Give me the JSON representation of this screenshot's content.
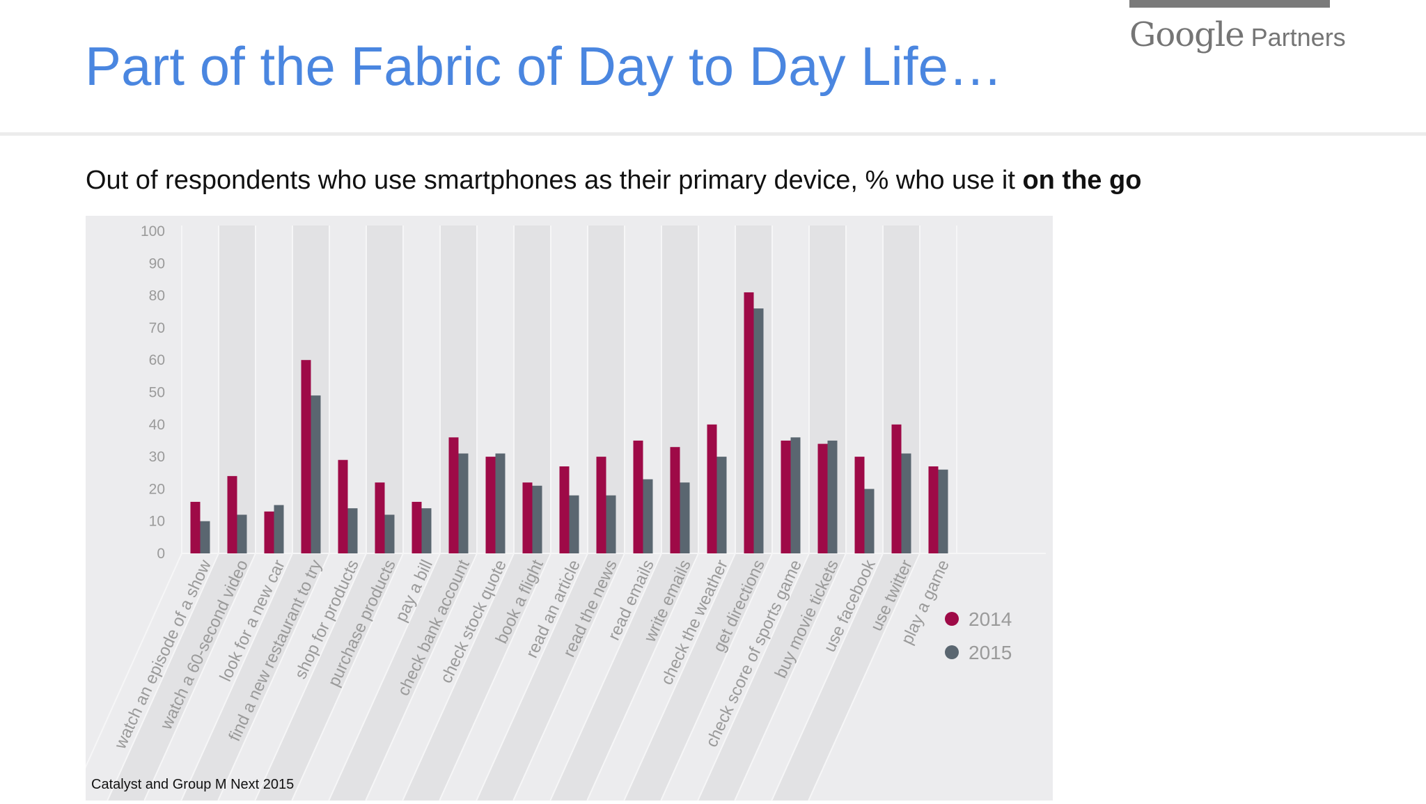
{
  "slide": {
    "title": "Part of the Fabric of Day to Day Life…",
    "subtitle_prefix": "Out of respondents who use smartphones as their primary device, % who use it ",
    "subtitle_emphasis": "on the go",
    "source": "Catalyst and Group M Next 2015",
    "logo_word": "Google",
    "logo_suffix": "Partners"
  },
  "colors": {
    "title": "#4a86e0",
    "series_2014": "#9e0a47",
    "series_2015": "#5a6670",
    "chart_bg": "#ececee",
    "band_dark": "#e2e2e4",
    "axis_text": "#9a9a9a"
  },
  "chart_data": {
    "type": "bar",
    "title": "",
    "xlabel": "",
    "ylabel": "",
    "ylim": [
      0,
      100
    ],
    "yticks": [
      0,
      10,
      20,
      30,
      40,
      50,
      60,
      70,
      80,
      90,
      100
    ],
    "grid": false,
    "legend_position": "right",
    "categories": [
      "watch an episode of a show",
      "watch a 60-second video",
      "look for a new car",
      "find a new restaurant to try",
      "shop for products",
      "purchase products",
      "pay a bill",
      "check bank account",
      "check stock quote",
      "book a flight",
      "read an article",
      "read the news",
      "read emails",
      "write emails",
      "check the weather",
      "get directions",
      "check score of sports game",
      "buy movie tickets",
      "use facebook",
      "use twitter",
      "play a game"
    ],
    "series": [
      {
        "name": "2014",
        "values": [
          16,
          24,
          13,
          60,
          29,
          22,
          16,
          36,
          30,
          22,
          27,
          30,
          35,
          33,
          40,
          81,
          35,
          34,
          30,
          40,
          27
        ]
      },
      {
        "name": "2015",
        "values": [
          10,
          12,
          15,
          49,
          14,
          12,
          14,
          31,
          31,
          21,
          18,
          18,
          23,
          22,
          30,
          76,
          36,
          35,
          20,
          31,
          26
        ]
      }
    ]
  }
}
